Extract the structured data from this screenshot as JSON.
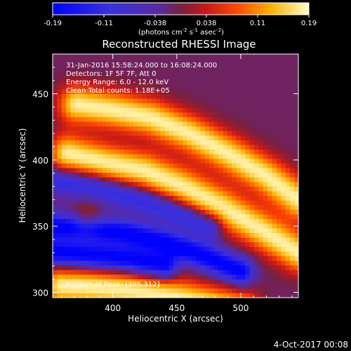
{
  "chart_data": {
    "type": "heatmap",
    "title": "Reconstructed RHESSI Image",
    "xlabel": "Heliocentric X (arcsec)",
    "ylabel": "Heliocentric Y (arcsec)",
    "xlim": [
      353,
      545
    ],
    "ylim": [
      296,
      480
    ],
    "x_ticks": [
      400,
      450,
      500
    ],
    "y_ticks": [
      300,
      350,
      400,
      450
    ],
    "colorbar": {
      "range": [
        -0.19,
        0.19
      ],
      "tick_labels": [
        "-0.19",
        "-0.11",
        "-0.038",
        "0.038",
        "0.11",
        "0.19"
      ],
      "unit_label": "(photons cm",
      "unit_sup1": "-2",
      "unit_mid1": " s",
      "unit_sup2": "-1",
      "unit_mid2": " asec",
      "unit_sup3": "-2",
      "unit_end": ")"
    },
    "annotations": [
      "31-Jan-2016 15:58:24.000 to 16:08:24.000",
      "Detectors: 1F 5F 7F, Att 0",
      "Energy Range: 6.0 - 12.0 keV",
      "Clean    Total counts: 1.18E+05"
    ],
    "position_label": "Position of Peak: [395,312]",
    "features": [
      {
        "kind": "positive-arc",
        "x": [
          372,
          400,
          430,
          460,
          490,
          520,
          545
        ],
        "y": [
          442,
          438,
          432,
          420,
          405,
          388,
          370
        ],
        "peak": 0.19
      },
      {
        "kind": "positive-arc",
        "x": [
          365,
          395,
          425,
          455,
          485,
          515,
          545
        ],
        "y": [
          405,
          398,
          392,
          380,
          365,
          348,
          330
        ],
        "peak": 0.19
      },
      {
        "kind": "positive-arc",
        "x": [
          360,
          385,
          410,
          440,
          470,
          500
        ],
        "y": [
          305,
          304,
          302,
          298,
          292,
          286
        ],
        "peak": 0.19
      },
      {
        "kind": "positive-blob",
        "x": [
          380
        ],
        "y": [
          355
        ],
        "peak": 0.07
      },
      {
        "kind": "negative-arc",
        "x": [
          353,
          380,
          410,
          440,
          470,
          500
        ],
        "y": [
          350,
          348,
          345,
          338,
          328,
          316
        ],
        "peak": -0.19
      },
      {
        "kind": "negative-arc",
        "x": [
          353,
          380,
          410,
          440
        ],
        "y": [
          330,
          328,
          325,
          320
        ],
        "peak": -0.19
      },
      {
        "kind": "negative-arc",
        "x": [
          353,
          385,
          415,
          445,
          475
        ],
        "y": [
          385,
          380,
          372,
          362,
          350
        ],
        "peak": -0.12
      }
    ]
  },
  "footer": {
    "date": "4-Oct-2017 00:08"
  }
}
